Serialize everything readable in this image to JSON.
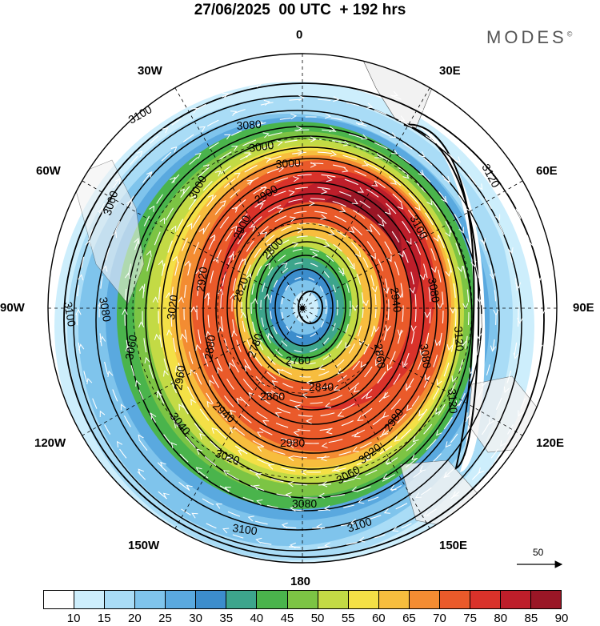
{
  "title": "27/06/2025  00 UTC  + 192 hrs",
  "brand": "MODES",
  "brand_mark": "©",
  "longitude_labels": {
    "lon_0": "0",
    "lon_30e": "30E",
    "lon_60e": "60E",
    "lon_90e": "90E",
    "lon_120e": "120E",
    "lon_150e": "150E",
    "lon_180": "180",
    "lon_150w": "150W",
    "lon_120w": "120W",
    "lon_90w": "90W",
    "lon_60w": "60W",
    "lon_30w": "30W"
  },
  "contour_labels": [
    "3100",
    "3080",
    "3060",
    "3040",
    "3020",
    "3000",
    "2980",
    "2960",
    "2940",
    "2920",
    "2900",
    "2880",
    "2860",
    "2840",
    "2820",
    "2800",
    "2780",
    "2760",
    "3120"
  ],
  "reference_vector": "50",
  "colorbar": {
    "colors": [
      "#ffffff",
      "#cdeefc",
      "#a9dcf6",
      "#7fc4ec",
      "#5aa9df",
      "#3c8dcc",
      "#3da58c",
      "#4ab44c",
      "#7cc444",
      "#c3da45",
      "#f4e046",
      "#f7bd3e",
      "#f38c32",
      "#ea5a2a",
      "#d9322a",
      "#bd1e2a",
      "#9a1626"
    ],
    "tick_labels": [
      "10",
      "15",
      "20",
      "25",
      "30",
      "35",
      "40",
      "45",
      "50",
      "55",
      "60",
      "65",
      "70",
      "75",
      "80",
      "85",
      "90"
    ]
  }
}
